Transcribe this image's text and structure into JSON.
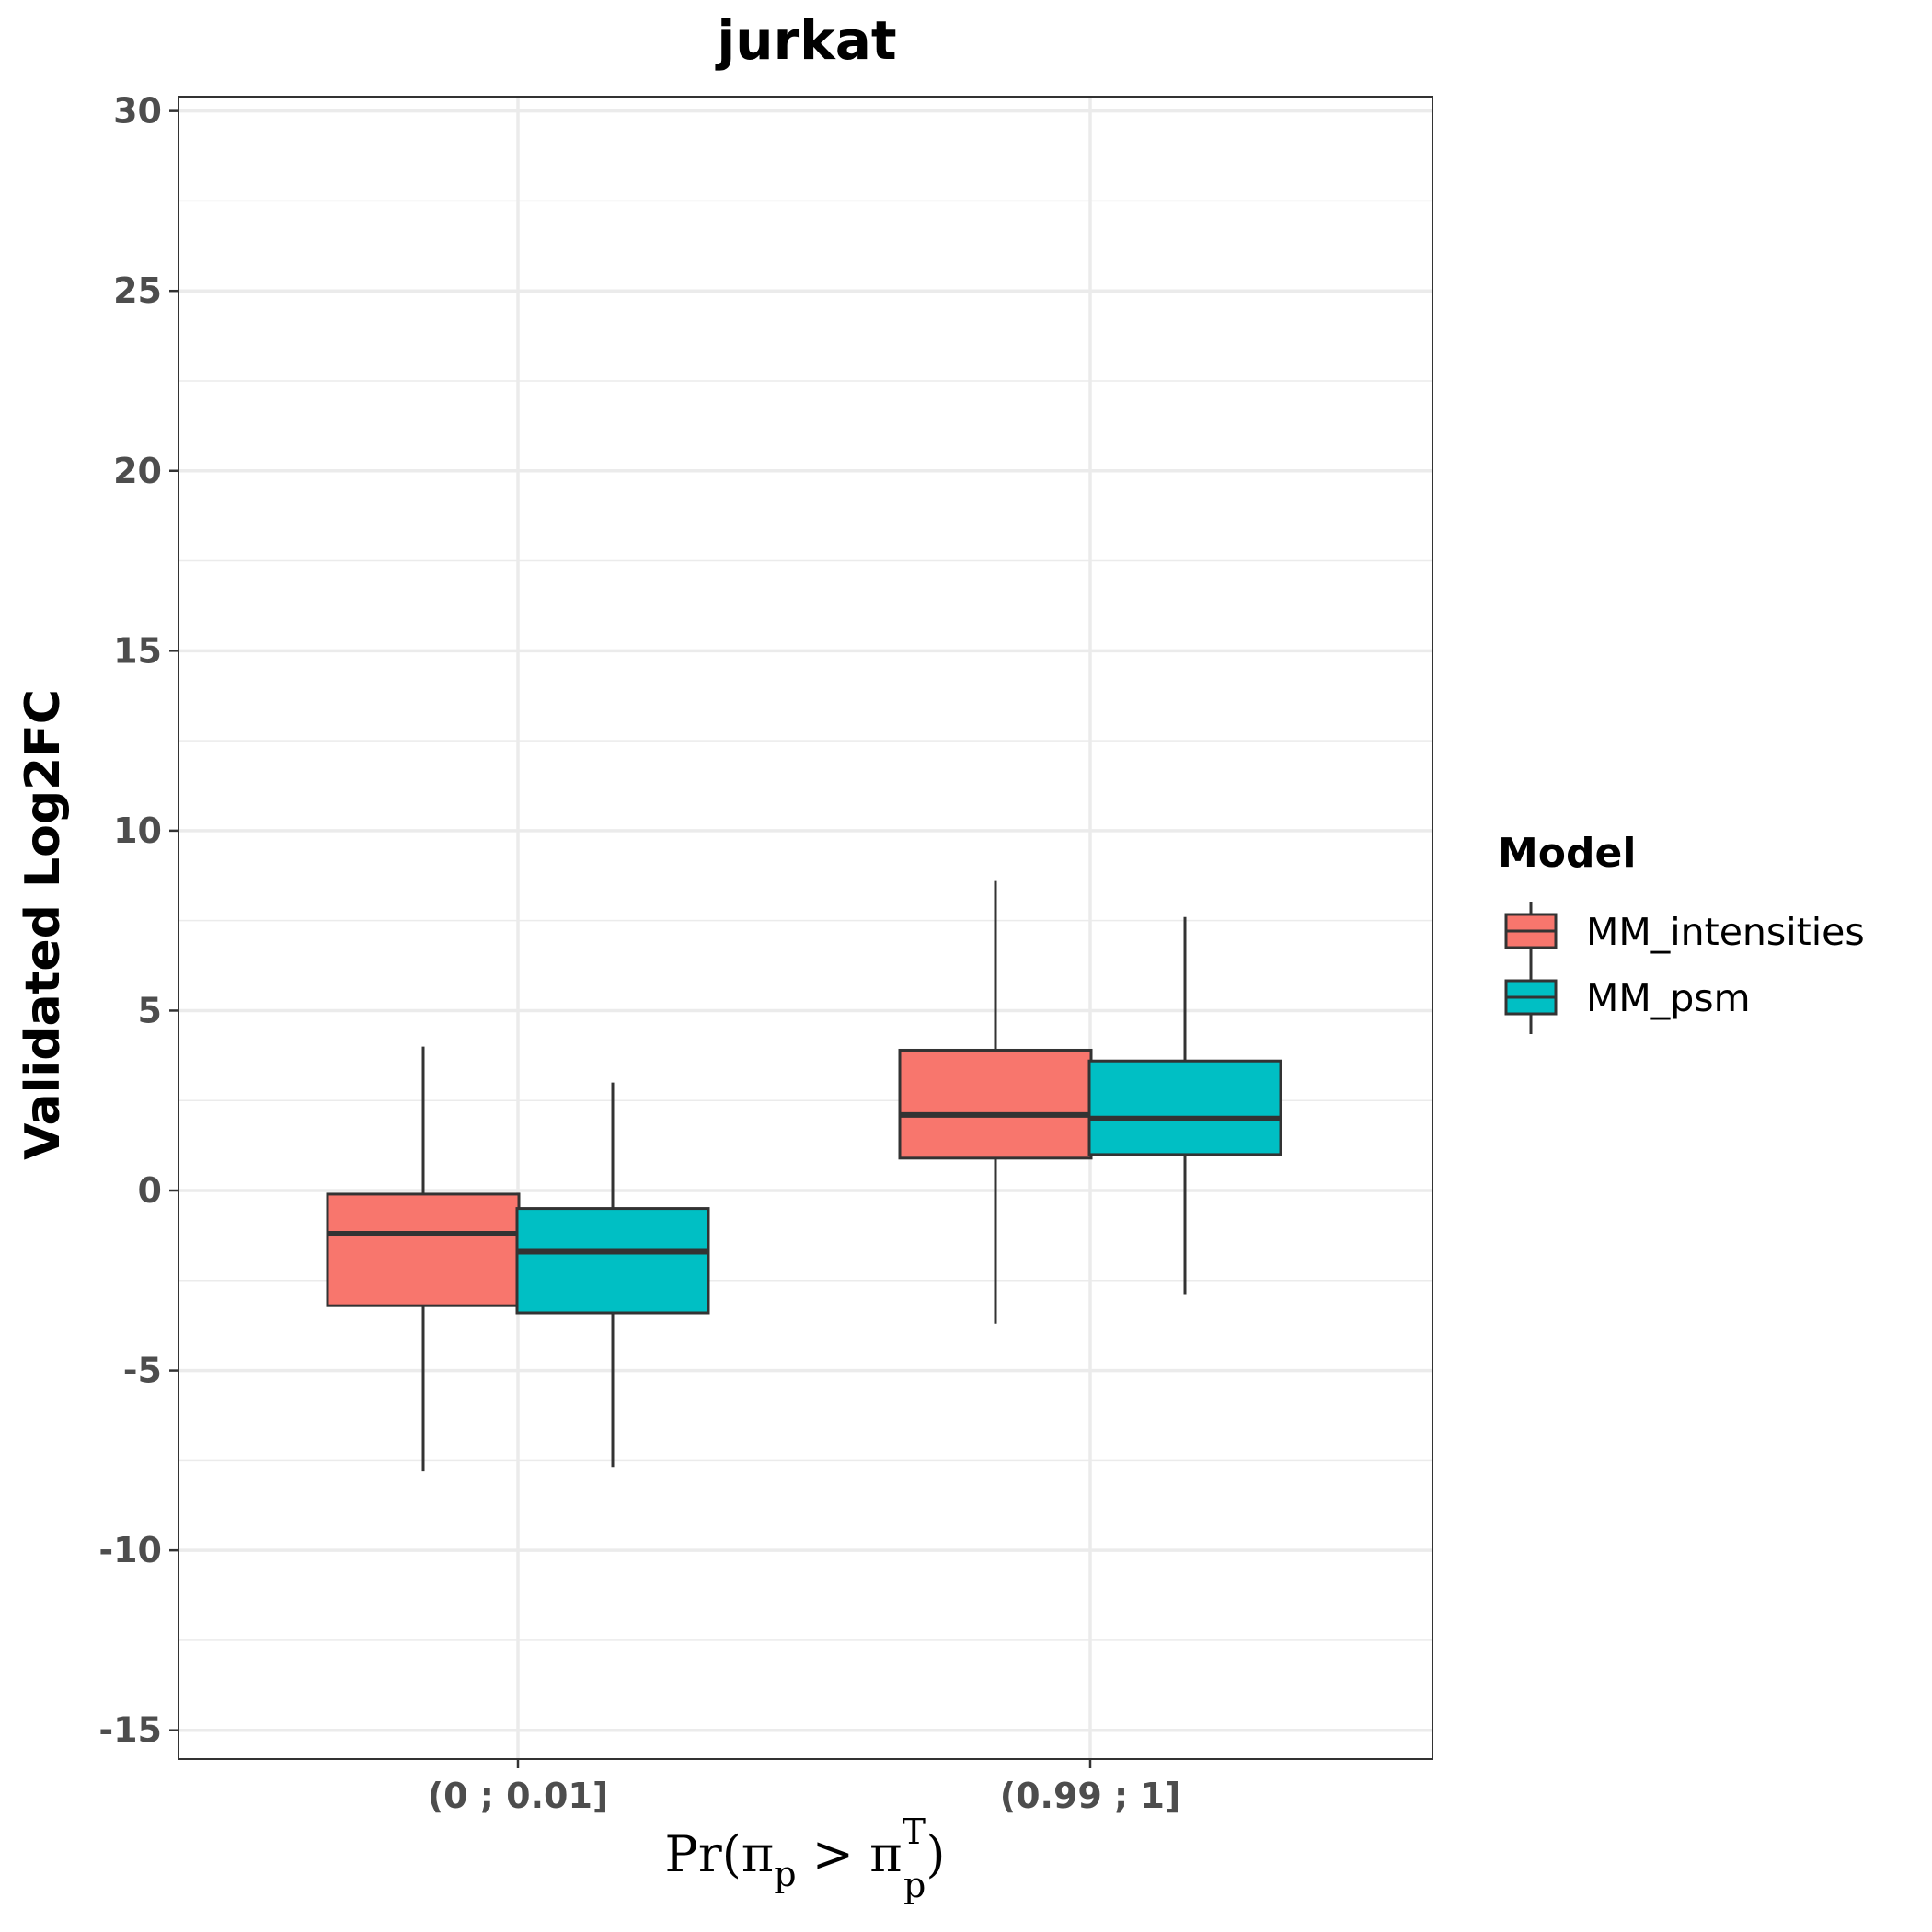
{
  "chart_data": {
    "type": "boxplot",
    "title": "jurkat",
    "ylabel": "Validated Log2FC",
    "xlabel": {
      "prefix": "Pr(",
      "var1": "π",
      "sub1": "p",
      "op": " > ",
      "var2": "π",
      "sup2": "T",
      "sub2": "p",
      "suffix": ")"
    },
    "ylim": [
      -15.8,
      30.4
    ],
    "yticks": [
      {
        "value": 30,
        "label": "30"
      },
      {
        "value": 25,
        "label": "25"
      },
      {
        "value": 20,
        "label": "20"
      },
      {
        "value": 15,
        "label": "15"
      },
      {
        "value": 10,
        "label": "10"
      },
      {
        "value": 5,
        "label": "5"
      },
      {
        "value": 0,
        "label": "0"
      },
      {
        "value": -5,
        "label": "-5"
      },
      {
        "value": -10,
        "label": "-10"
      },
      {
        "value": -15,
        "label": "-15"
      }
    ],
    "categories": [
      "(0 ; 0.01]",
      "(0.99 ; 1]"
    ],
    "grid": true,
    "legend_position": "right",
    "legend_title": "Model",
    "series": [
      {
        "name": "MM_intensities",
        "color": "#F8766D",
        "boxes": [
          {
            "whisker_low": -7.8,
            "q1": -3.2,
            "median": -1.2,
            "q3": -0.1,
            "whisker_high": 4.0
          },
          {
            "whisker_low": -3.7,
            "q1": 0.9,
            "median": 2.1,
            "q3": 3.9,
            "whisker_high": 8.6
          }
        ]
      },
      {
        "name": "MM_psm",
        "color": "#00BFC4",
        "boxes": [
          {
            "whisker_low": -7.7,
            "q1": -3.4,
            "median": -1.7,
            "q3": -0.5,
            "whisker_high": 3.0
          },
          {
            "whisker_low": -2.9,
            "q1": 1.0,
            "median": 2.0,
            "q3": 3.6,
            "whisker_high": 7.6
          }
        ]
      }
    ]
  }
}
